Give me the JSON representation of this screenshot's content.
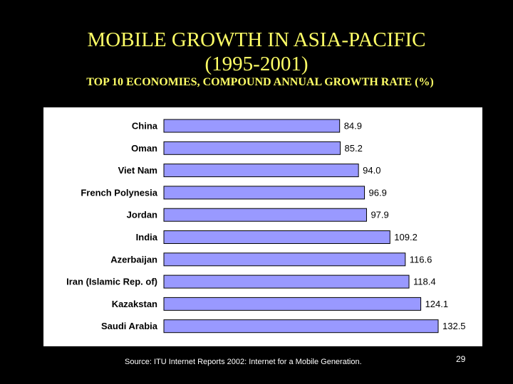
{
  "slide": {
    "title_line1": "MOBILE GROWTH IN ASIA-PACIFIC",
    "title_line2": "(1995-2001)",
    "subtitle": "TOP 10 ECONOMIES, COMPOUND ANNUAL GROWTH RATE (%)",
    "source": "Source: ITU Internet Reports 2002: Internet for a Mobile Generation.",
    "page_number": "29"
  },
  "chart_data": {
    "type": "bar",
    "orientation": "horizontal",
    "categories": [
      "China",
      "Oman",
      "Viet Nam",
      "French Polynesia",
      "Jordan",
      "India",
      "Azerbaijan",
      "Iran (Islamic Rep. of)",
      "Kazakstan",
      "Saudi Arabia"
    ],
    "values": [
      84.9,
      85.2,
      94.0,
      96.9,
      97.9,
      109.2,
      116.6,
      118.4,
      124.1,
      132.5
    ],
    "value_labels": [
      "84.9",
      "85.2",
      "94.0",
      "96.9",
      "97.9",
      "109.2",
      "116.6",
      "118.4",
      "124.1",
      "132.5"
    ],
    "xlim": [
      0,
      132.5
    ],
    "grid": false,
    "legend": "none",
    "bar_color": "#9999ff",
    "bar_outline": "#000000"
  }
}
